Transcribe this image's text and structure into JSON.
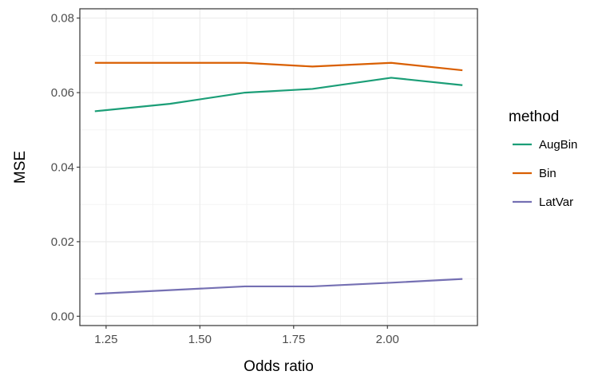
{
  "chart_data": {
    "type": "line",
    "title": "",
    "xlabel": "Odds ratio",
    "ylabel": "MSE",
    "xlim": [
      1.18,
      2.24
    ],
    "ylim": [
      -0.0025,
      0.0825
    ],
    "x_ticks": [
      1.25,
      1.5,
      1.75,
      2.0
    ],
    "x_tick_labels": [
      "1.25",
      "1.50",
      "1.75",
      "2.00"
    ],
    "y_ticks": [
      0.0,
      0.02,
      0.04,
      0.06,
      0.08
    ],
    "y_tick_labels": [
      "0.00",
      "0.02",
      "0.04",
      "0.06",
      "0.08"
    ],
    "grid": true,
    "legend": {
      "title": "method",
      "position": "right"
    },
    "x": [
      1.22,
      1.42,
      1.62,
      1.8,
      2.01,
      2.2
    ],
    "series": [
      {
        "name": "AugBin",
        "color": "#1b9e77",
        "values": [
          0.055,
          0.057,
          0.06,
          0.061,
          0.064,
          0.062
        ]
      },
      {
        "name": "Bin",
        "color": "#d95f02",
        "values": [
          0.068,
          0.068,
          0.068,
          0.067,
          0.068,
          0.066
        ]
      },
      {
        "name": "LatVar",
        "color": "#7570b3",
        "values": [
          0.006,
          0.007,
          0.008,
          0.008,
          0.009,
          0.01
        ]
      }
    ]
  }
}
